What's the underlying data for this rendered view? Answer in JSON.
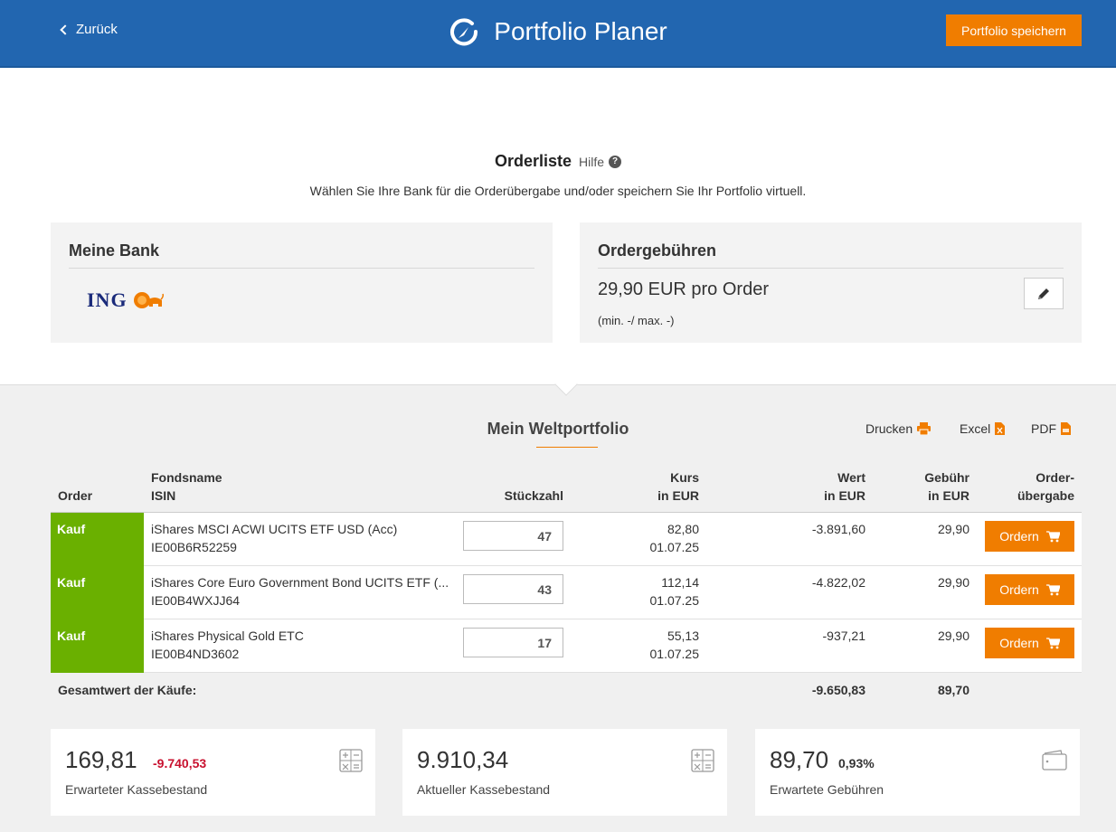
{
  "header": {
    "back_label": "Zurück",
    "title": "Portfolio Planer",
    "save_label": "Portfolio speichern"
  },
  "orderliste": {
    "title": "Orderliste",
    "help_label": "Hilfe",
    "subtitle": "Wählen Sie Ihre Bank für die Orderübergabe und/oder speichern Sie Ihr Portfolio virtuell."
  },
  "bank": {
    "title": "Meine Bank",
    "logo_text": "ING"
  },
  "fees": {
    "title": "Ordergebühren",
    "amount": "29,90 EUR pro Order",
    "minmax": "(min. -/ max. -)"
  },
  "portfolio": {
    "title": "Mein Weltportfolio",
    "exports": [
      {
        "label": "Drucken",
        "icon": "printer-icon"
      },
      {
        "label": "Excel",
        "icon": "excel-file-icon"
      },
      {
        "label": "PDF",
        "icon": "pdf-file-icon"
      }
    ]
  },
  "table": {
    "headers": {
      "order": "Order",
      "fondsname": "Fondsname",
      "isin": "ISIN",
      "stueckzahl": "Stückzahl",
      "kurs": "Kurs",
      "kurs_unit": "in EUR",
      "wert": "Wert",
      "wert_unit": "in EUR",
      "gebuehr": "Gebühr",
      "gebuehr_unit": "in EUR",
      "uebergabe_1": "Order-",
      "uebergabe_2": "übergabe"
    },
    "rows": [
      {
        "type": "Kauf",
        "name": "iShares MSCI ACWI UCITS ETF USD (Acc)",
        "isin": "IE00B6R52259",
        "qty": "47",
        "kurs": "82,80",
        "date": "01.07.25",
        "wert": "-3.891,60",
        "gebuehr": "29,90",
        "button": "Ordern"
      },
      {
        "type": "Kauf",
        "name": "iShares Core Euro Government Bond UCITS ETF (...",
        "isin": "IE00B4WXJJ64",
        "qty": "43",
        "kurs": "112,14",
        "date": "01.07.25",
        "wert": "-4.822,02",
        "gebuehr": "29,90",
        "button": "Ordern"
      },
      {
        "type": "Kauf",
        "name": "iShares Physical Gold ETC",
        "isin": "IE00B4ND3602",
        "qty": "17",
        "kurs": "55,13",
        "date": "01.07.25",
        "wert": "-937,21",
        "gebuehr": "29,90",
        "button": "Ordern"
      }
    ],
    "total_label": "Gesamtwert der Käufe:",
    "total_wert": "-9.650,83",
    "total_gebuehr": "89,70"
  },
  "summary": [
    {
      "value": "169,81",
      "delta": "-9.740,53",
      "label": "Erwarteter Kassebestand",
      "icon": "calculator-icon"
    },
    {
      "value": "9.910,34",
      "delta": "",
      "label": "Aktueller Kassebestand",
      "icon": "calculator-icon"
    },
    {
      "value": "89,70",
      "delta": "0,93%",
      "label": "Erwartete Gebühren",
      "icon": "wallet-icon"
    }
  ],
  "colors": {
    "header_blue": "#2266b0",
    "accent_orange": "#f07d00",
    "buy_green": "#6ab000",
    "negative_red": "#c8102e"
  }
}
